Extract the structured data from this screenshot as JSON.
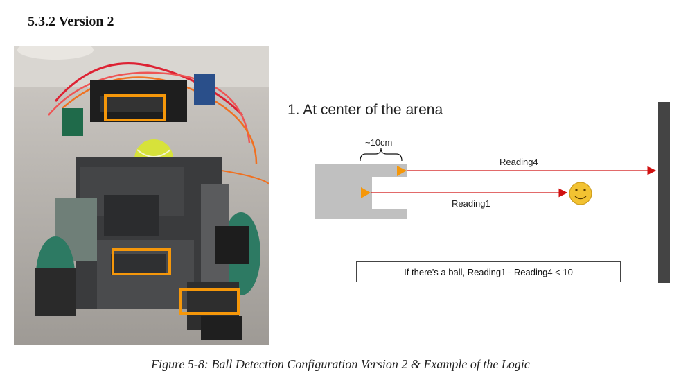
{
  "heading": "5.3.2 Version 2",
  "diagram": {
    "step_title": "1. At center of the arena",
    "distance_label": "~10cm",
    "reading4_label": "Reading4",
    "reading1_label": "Reading1",
    "formula": "If there’s a ball, Reading1 - Reading4 < 10"
  },
  "caption": "Figure 5-8: Ball Detection Configuration Version 2 & Example of the Logic",
  "colors": {
    "sensor_box": "#f5970a",
    "ray": "#d01010",
    "robot_body": "#c0c0c0",
    "wall": "#444444",
    "ball_face": "#f2c232"
  }
}
